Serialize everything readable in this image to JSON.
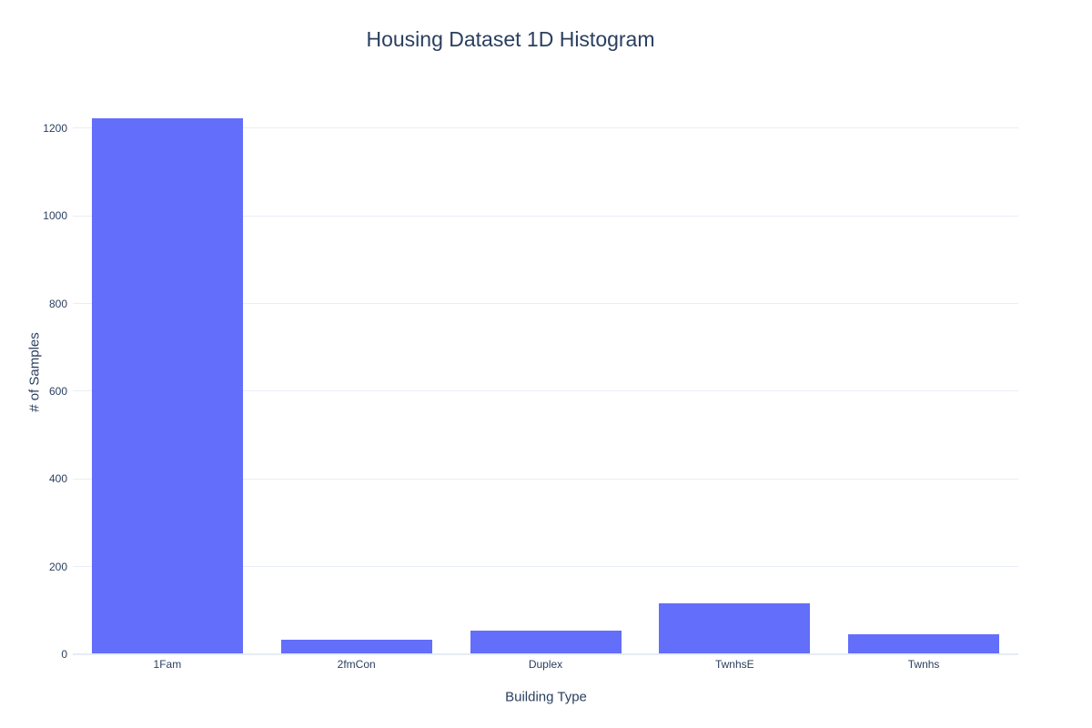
{
  "chart_data": {
    "type": "bar",
    "title": "Housing Dataset 1D Histogram",
    "xlabel": "Building Type",
    "ylabel": "# of Samples",
    "categories": [
      "1Fam",
      "2fmCon",
      "Duplex",
      "TwnhsE",
      "Twnhs"
    ],
    "values": [
      1220,
      31,
      52,
      114,
      43
    ],
    "yticks": [
      0,
      200,
      400,
      600,
      800,
      1000,
      1200
    ],
    "ylim": [
      0,
      1285
    ],
    "grid": true,
    "legend": "none",
    "bar_color": "#636efa",
    "text_color": "#2a3f5f",
    "grid_color": "#e8eef7",
    "background_color": "#ffffff"
  }
}
